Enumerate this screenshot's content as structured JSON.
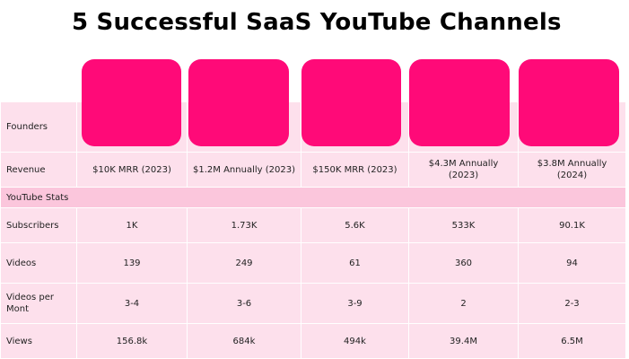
{
  "title": "5 Successful SaaS YouTube Channels",
  "table": {
    "founders_label": "Founders",
    "revenue_label": "Revenue",
    "section_label": "YouTube Stats",
    "revenue": [
      "$10K MRR (2023)",
      "$1.2M Annually (2023)",
      "$150K MRR (2023)",
      "$4.3M  Annually (2023)",
      "$3.8M Annually (2024)"
    ],
    "rows": [
      {
        "label": "Subscribers",
        "values": [
          "1K",
          "1.73K",
          "5.6K",
          "533K",
          "90.1K"
        ]
      },
      {
        "label": "Videos",
        "values": [
          "139",
          "249",
          "61",
          "360",
          "94"
        ]
      },
      {
        "label": "Videos per Mont",
        "values": [
          "3-4",
          "3-6",
          "3-9",
          "2",
          "2-3"
        ]
      },
      {
        "label": "Views",
        "values": [
          "156.8k",
          "684k",
          "494k",
          "39.4M",
          "6.5M"
        ]
      }
    ]
  },
  "colors": {
    "logo_placeholder": "#ff0a78",
    "cell_bg": "#fde0ec",
    "section_bg": "#fbc6dc"
  }
}
